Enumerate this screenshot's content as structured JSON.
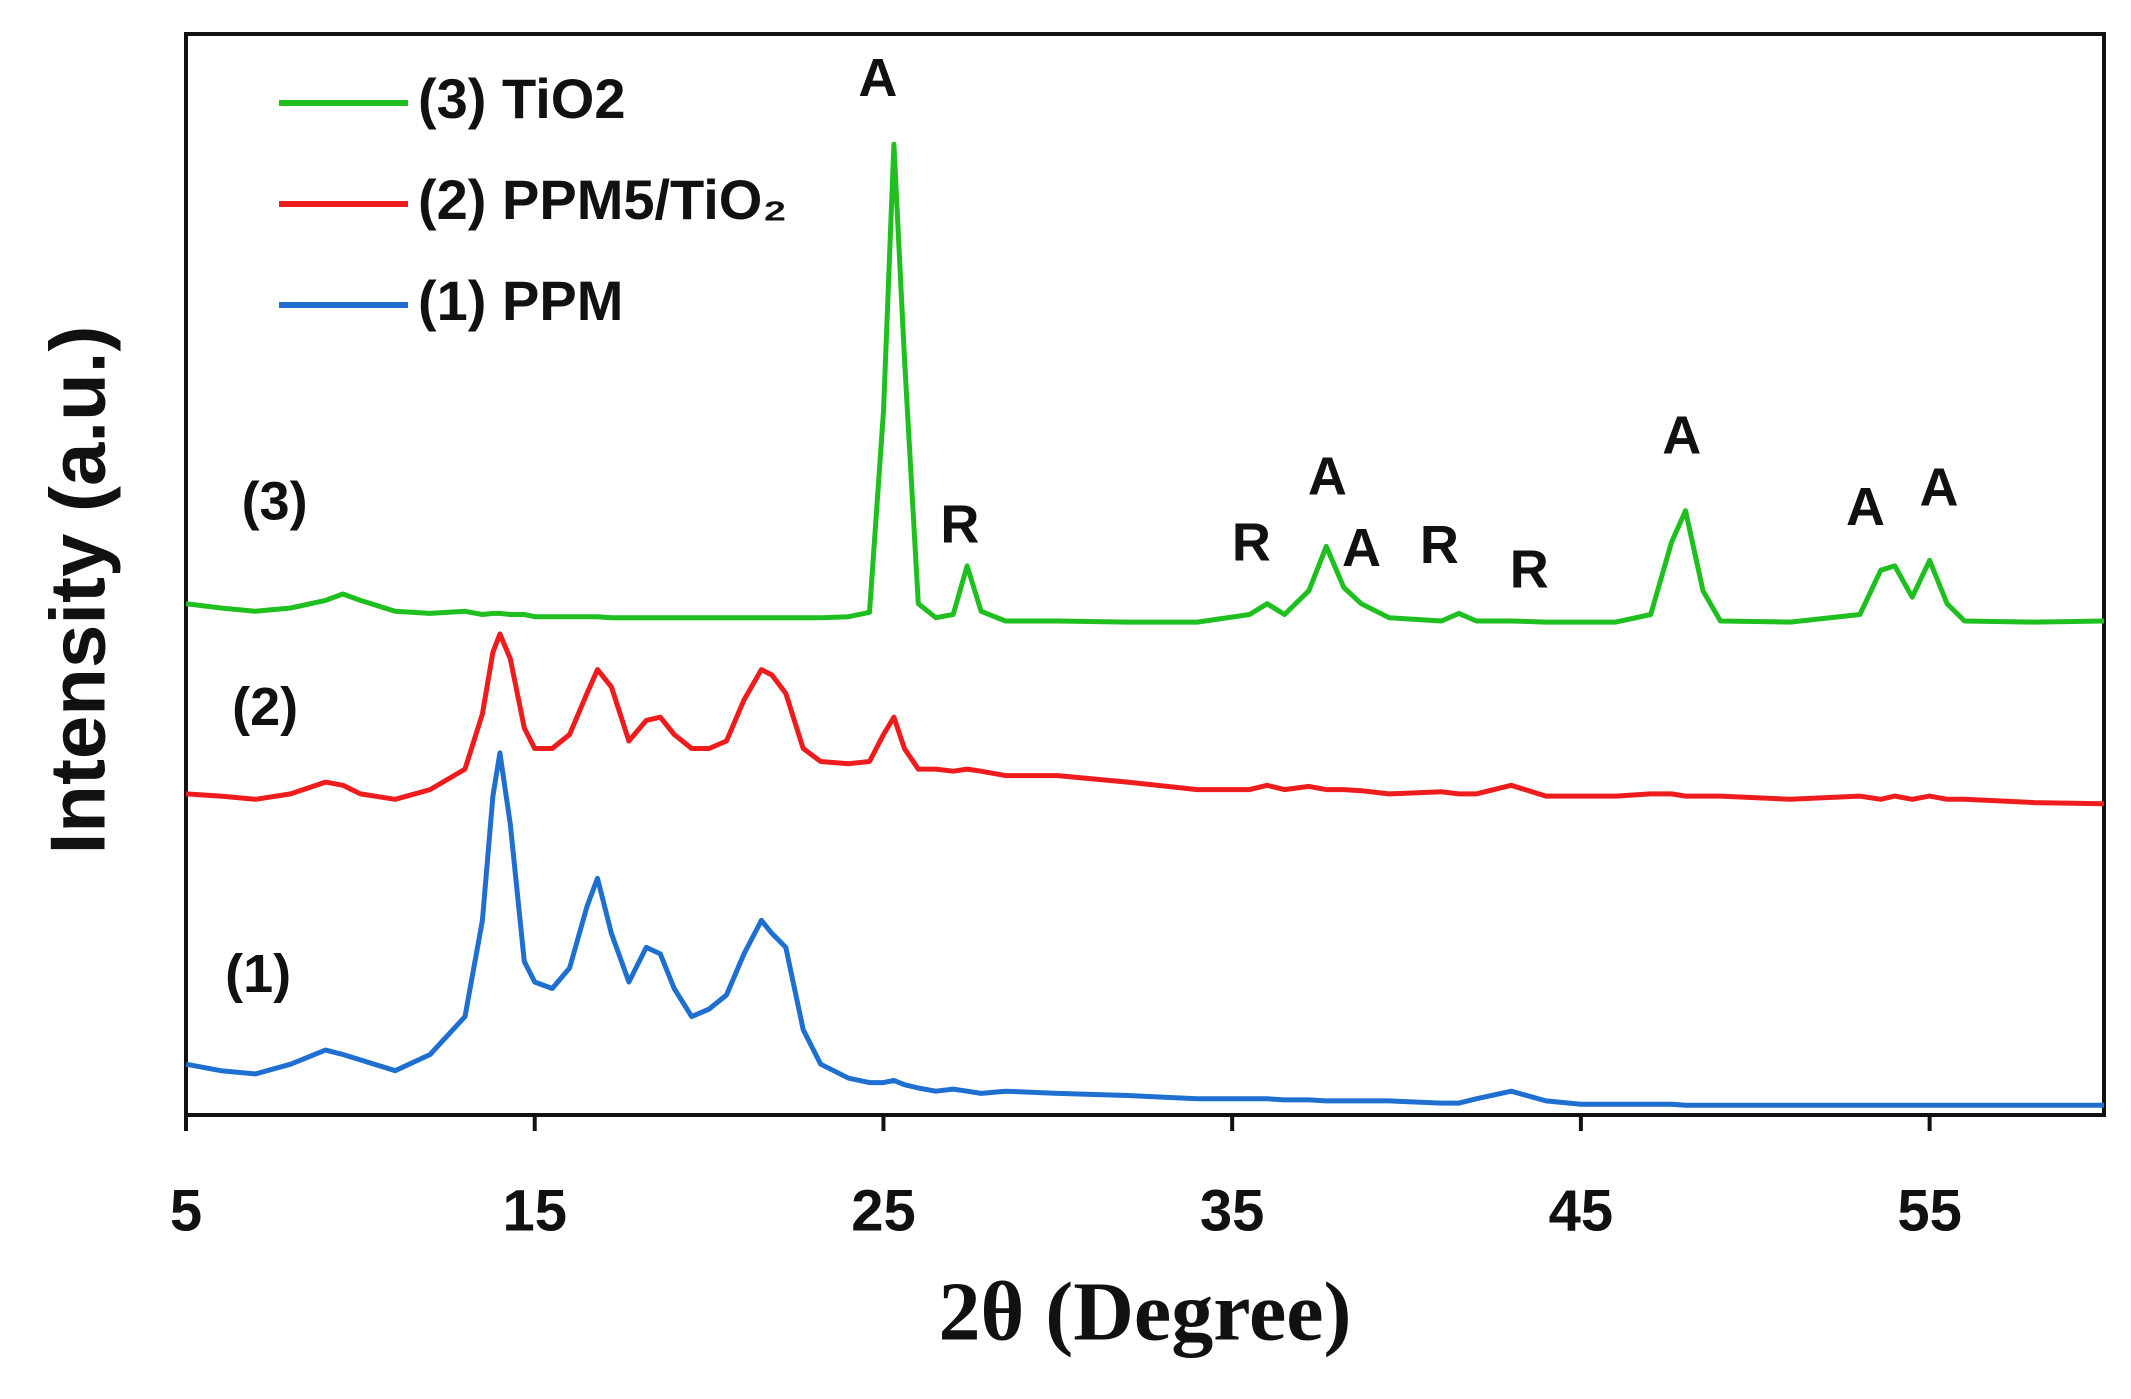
{
  "chart_data": {
    "type": "line",
    "x_label": "2θ (Degree)",
    "y_label": "Intensity (a.u.)",
    "xlim": [
      5,
      60
    ],
    "xticks": [
      5,
      15,
      25,
      35,
      45,
      55
    ],
    "ylim": [
      0,
      100
    ],
    "legend": "upper left",
    "x": [
      5,
      6,
      7,
      8,
      9,
      9.5,
      10,
      11,
      12,
      13,
      13.5,
      13.8,
      14,
      14.3,
      14.7,
      15,
      15.5,
      16,
      16.5,
      16.8,
      17.2,
      17.7,
      18.2,
      18.6,
      19,
      19.5,
      20,
      20.5,
      21,
      21.5,
      21.8,
      22.2,
      22.7,
      23.2,
      24,
      24.6,
      25,
      25.3,
      25.6,
      26,
      26.5,
      27,
      27.4,
      27.8,
      28.5,
      30,
      32,
      34,
      35.5,
      36,
      36.5,
      37.2,
      37.7,
      38.2,
      38.7,
      39.5,
      41,
      41.5,
      42,
      43,
      44,
      45,
      46,
      47,
      47.6,
      48,
      48.5,
      49,
      51,
      53,
      53.6,
      54,
      54.5,
      55,
      55.5,
      56,
      58,
      60
    ],
    "series": [
      {
        "name": "(3) TiO2",
        "color": "#1fbf1f",
        "values": [
          47.3,
          46.9,
          46.6,
          46.9,
          47.6,
          48.2,
          47.6,
          46.6,
          46.4,
          46.6,
          46.3,
          46.4,
          46.4,
          46.3,
          46.3,
          46.1,
          46.1,
          46.1,
          46.1,
          46.1,
          46.0,
          46.0,
          46.0,
          46.0,
          46.0,
          46.0,
          46.0,
          46.0,
          46.0,
          46.0,
          46.0,
          46.0,
          46.0,
          46.0,
          46.1,
          46.5,
          65.1,
          89.8,
          70.1,
          47.3,
          46.0,
          46.3,
          50.8,
          46.6,
          45.7,
          45.7,
          45.6,
          45.6,
          46.3,
          47.3,
          46.3,
          48.5,
          52.6,
          48.8,
          47.3,
          46.0,
          45.7,
          46.4,
          45.7,
          45.7,
          45.6,
          45.6,
          45.6,
          46.3,
          53.0,
          55.9,
          48.5,
          45.7,
          45.6,
          46.3,
          50.4,
          50.8,
          47.9,
          51.3,
          47.3,
          45.7,
          45.6,
          45.7
        ]
      },
      {
        "name": "(2) PPM5/TiO₂",
        "color": "#ee1c1c",
        "values": [
          29.7,
          29.5,
          29.2,
          29.7,
          30.8,
          30.5,
          29.7,
          29.2,
          30.1,
          32.0,
          37.1,
          42.8,
          44.5,
          42.2,
          35.8,
          33.9,
          33.9,
          35.2,
          39.0,
          41.2,
          39.6,
          34.6,
          36.5,
          36.8,
          35.2,
          33.9,
          33.9,
          34.6,
          38.4,
          41.2,
          40.7,
          39.0,
          33.9,
          32.7,
          32.5,
          32.7,
          35.2,
          36.8,
          33.9,
          32.0,
          32.0,
          31.8,
          32.0,
          31.8,
          31.4,
          31.4,
          30.8,
          30.1,
          30.1,
          30.5,
          30.1,
          30.4,
          30.1,
          30.1,
          30.0,
          29.7,
          29.9,
          29.7,
          29.7,
          30.5,
          29.5,
          29.5,
          29.5,
          29.7,
          29.7,
          29.5,
          29.5,
          29.5,
          29.2,
          29.5,
          29.2,
          29.5,
          29.2,
          29.5,
          29.2,
          29.2,
          28.9,
          28.8
        ]
      },
      {
        "name": "(1) PPM",
        "color": "#1f6fd0",
        "values": [
          4.7,
          4.1,
          3.8,
          4.7,
          6.0,
          5.6,
          5.1,
          4.1,
          5.6,
          9.1,
          18.0,
          29.5,
          33.5,
          26.9,
          14.2,
          12.3,
          11.7,
          13.6,
          19.3,
          21.9,
          16.8,
          12.3,
          15.5,
          14.9,
          11.7,
          9.1,
          9.8,
          11.1,
          14.9,
          18.0,
          16.8,
          15.5,
          7.9,
          4.7,
          3.4,
          3.0,
          3.0,
          3.2,
          2.8,
          2.5,
          2.2,
          2.4,
          2.2,
          2.0,
          2.2,
          2.0,
          1.8,
          1.5,
          1.5,
          1.5,
          1.4,
          1.4,
          1.3,
          1.3,
          1.3,
          1.3,
          1.1,
          1.1,
          1.5,
          2.2,
          1.3,
          1.0,
          1.0,
          1.0,
          1.0,
          0.9,
          0.9,
          0.9,
          0.9,
          0.9,
          0.9,
          0.9,
          0.9,
          0.9,
          0.9,
          0.9,
          0.9,
          0.9
        ]
      }
    ],
    "annotations": [
      {
        "text": "A",
        "x": 24.84,
        "y": 95.6
      },
      {
        "text": "R",
        "x": 27.19,
        "y": 54.3
      },
      {
        "text": "R",
        "x": 35.55,
        "y": 52.6
      },
      {
        "text": "A",
        "x": 37.73,
        "y": 58.7
      },
      {
        "text": "A",
        "x": 38.71,
        "y": 52.1
      },
      {
        "text": "R",
        "x": 40.94,
        "y": 52.4
      },
      {
        "text": "R",
        "x": 43.52,
        "y": 50.1
      },
      {
        "text": "A",
        "x": 47.89,
        "y": 62.5
      },
      {
        "text": "A",
        "x": 53.16,
        "y": 55.9
      },
      {
        "text": "A",
        "x": 55.27,
        "y": 57.7
      },
      {
        "text": "(3)",
        "x": 7.54,
        "y": 56.4
      },
      {
        "text": "(2)",
        "x": 7.27,
        "y": 37.4
      },
      {
        "text": "(1)",
        "x": 7.07,
        "y": 12.7
      }
    ]
  }
}
